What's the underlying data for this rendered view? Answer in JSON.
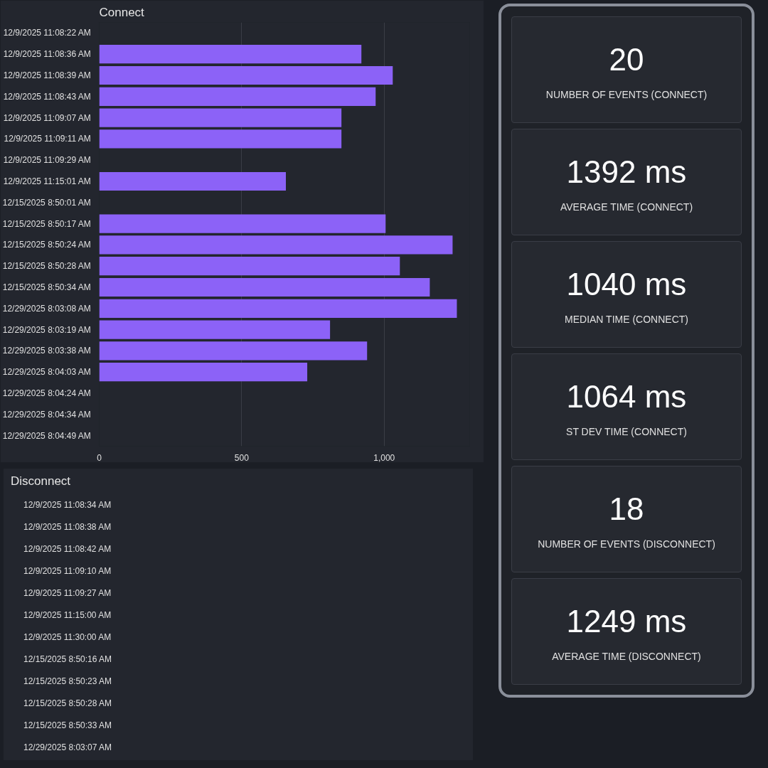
{
  "chart_data": [
    {
      "type": "bar",
      "orientation": "horizontal",
      "title": "Connect",
      "categories": [
        "12/9/2025 11:08:22 AM",
        "12/9/2025 11:08:36 AM",
        "12/9/2025 11:08:39 AM",
        "12/9/2025 11:08:43 AM",
        "12/9/2025 11:09:07 AM",
        "12/9/2025 11:09:11 AM",
        "12/9/2025 11:09:29 AM",
        "12/9/2025 11:15:01 AM",
        "12/15/2025 8:50:01 AM",
        "12/15/2025 8:50:17 AM",
        "12/15/2025 8:50:24 AM",
        "12/15/2025 8:50:28 AM",
        "12/15/2025 8:50:34 AM",
        "12/29/2025 8:03:08 AM",
        "12/29/2025 8:03:19 AM",
        "12/29/2025 8:03:38 AM",
        "12/29/2025 8:04:03 AM",
        "12/29/2025 8:04:24 AM",
        "12/29/2025 8:04:34 AM",
        "12/29/2025 8:04:49 AM"
      ],
      "values": [
        null,
        920,
        1030,
        970,
        850,
        850,
        null,
        655,
        null,
        1005,
        1240,
        1055,
        1160,
        1255,
        810,
        940,
        730,
        null,
        null,
        null
      ],
      "color": "#8c62f7",
      "xlim": [
        0,
        1300
      ],
      "xticks": [
        0,
        500,
        {
          "value": 1000,
          "label": "1,000"
        }
      ],
      "grid": "x"
    },
    {
      "type": "other",
      "title": "Disconnect",
      "annotations": [
        "12/9/2025 11:08:34 AM",
        "12/9/2025 11:08:38 AM",
        "12/9/2025 11:08:42 AM",
        "12/9/2025 11:09:10 AM",
        "12/9/2025 11:09:27 AM",
        "12/9/2025 11:15:00 AM",
        "12/9/2025 11:30:00 AM",
        "12/15/2025 8:50:16 AM",
        "12/15/2025 8:50:23 AM",
        "12/15/2025 8:50:28 AM",
        "12/15/2025 8:50:33 AM",
        "12/29/2025 8:03:07 AM"
      ]
    },
    {
      "type": "other",
      "annotations": [
        "20",
        "NUMBER OF EVENTS (CONNECT)",
        "1392 ms",
        "AVERAGE TIME (CONNECT)",
        "1040 ms",
        "MEDIAN TIME (CONNECT)",
        "1064 ms",
        "ST DEV TIME (CONNECT)",
        "18",
        "NUMBER OF EVENTS (DISCONNECT)",
        "1249 ms",
        "AVERAGE TIME (DISCONNECT)"
      ]
    }
  ]
}
